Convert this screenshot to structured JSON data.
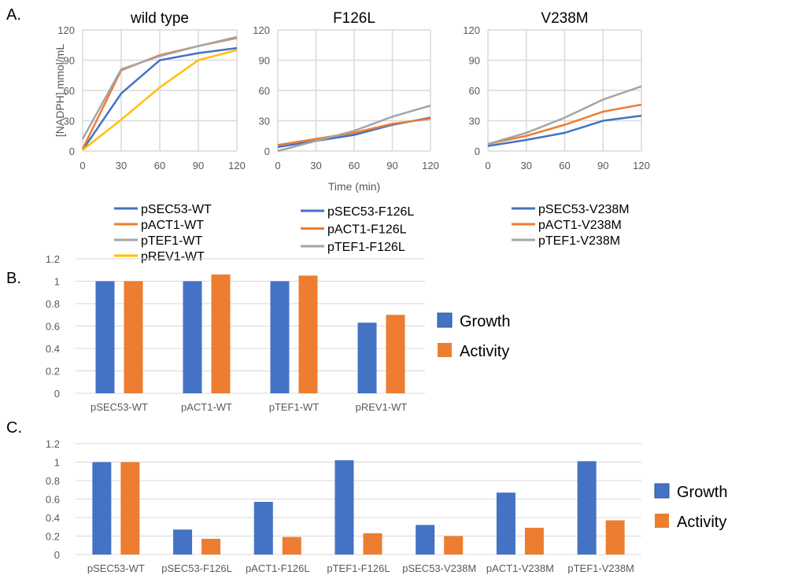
{
  "panel_labels": [
    "A.",
    "B.",
    "C."
  ],
  "colors": {
    "pSEC53": "#4472C4",
    "pACT1": "#ED7D31",
    "pTEF1": "#A5A5A5",
    "pREV1": "#FFC000",
    "growth": "#4472C4",
    "activity": "#ED7D31",
    "grid": "#D9D9D9",
    "tick": "#595959"
  },
  "chart_data": [
    {
      "type": "line",
      "title": "wild type",
      "ylabel": "[NADPH] mmol/mL",
      "xlabel": "",
      "ylim": [
        0,
        120
      ],
      "yticks": [
        0,
        30,
        60,
        90,
        120
      ],
      "x": [
        0,
        30,
        60,
        90,
        120
      ],
      "grid": true,
      "legend": "bottom",
      "series": [
        {
          "name": "pSEC53-WT",
          "values": [
            1,
            57,
            90,
            97,
            102
          ]
        },
        {
          "name": "pACT1-WT",
          "values": [
            2,
            80,
            95,
            104,
            112
          ]
        },
        {
          "name": "pTEF1-WT",
          "values": [
            12,
            81,
            94,
            104,
            113
          ]
        },
        {
          "name": "pREV1-WT",
          "values": [
            1,
            31,
            63,
            90,
            100
          ]
        }
      ]
    },
    {
      "type": "line",
      "title": "F126L",
      "ylabel": "",
      "xlabel": "Time (min)",
      "ylim": [
        0,
        120
      ],
      "yticks": [
        0,
        30,
        60,
        90,
        120
      ],
      "x": [
        0,
        30,
        60,
        90,
        120
      ],
      "grid": true,
      "legend": "bottom",
      "series": [
        {
          "name": "pSEC53-F126L",
          "values": [
            4,
            10,
            16,
            26,
            33
          ]
        },
        {
          "name": "pACT1-F126L",
          "values": [
            6,
            12,
            18,
            27,
            32
          ]
        },
        {
          "name": "pTEF1-F126L",
          "values": [
            0,
            10,
            20,
            34,
            45
          ]
        }
      ]
    },
    {
      "type": "line",
      "title": "V238M",
      "ylabel": "",
      "xlabel": "",
      "ylim": [
        0,
        120
      ],
      "yticks": [
        0,
        30,
        60,
        90,
        120
      ],
      "x": [
        0,
        30,
        60,
        90,
        120
      ],
      "grid": true,
      "legend": "bottom",
      "series": [
        {
          "name": "pSEC53-V238M",
          "values": [
            5,
            11,
            18,
            30,
            35
          ]
        },
        {
          "name": "pACT1-V238M",
          "values": [
            7,
            15,
            26,
            39,
            46
          ]
        },
        {
          "name": "pTEF1-V238M",
          "values": [
            7,
            18,
            33,
            51,
            64
          ]
        }
      ]
    },
    {
      "type": "bar",
      "ylim": [
        0,
        1.2
      ],
      "yticks": [
        "0",
        "0.2",
        "0.4",
        "0.6",
        "0.8",
        "1",
        "1.2"
      ],
      "grid": true,
      "legend": "right",
      "categories": [
        "pSEC53-WT",
        "pACT1-WT",
        "pTEF1-WT",
        "pREV1-WT"
      ],
      "series": [
        {
          "name": "Growth",
          "values": [
            1,
            1,
            1,
            0.63
          ]
        },
        {
          "name": "Activity",
          "values": [
            1,
            1.06,
            1.05,
            0.7
          ]
        }
      ]
    },
    {
      "type": "bar",
      "ylim": [
        0,
        1.2
      ],
      "yticks": [
        "0",
        "0.2",
        "0.4",
        "0.6",
        "0.8",
        "1",
        "1.2"
      ],
      "grid": true,
      "legend": "right",
      "categories": [
        "pSEC53-WT",
        "pSEC53-F126L",
        "pACT1-F126L",
        "pTEF1-F126L",
        "pSEC53-V238M",
        "pACT1-V238M",
        "pTEF1-V238M"
      ],
      "series": [
        {
          "name": "Growth",
          "values": [
            1,
            0.27,
            0.57,
            1.02,
            0.32,
            0.67,
            1.01
          ]
        },
        {
          "name": "Activity",
          "values": [
            1,
            0.17,
            0.19,
            0.23,
            0.2,
            0.29,
            0.37
          ]
        }
      ]
    }
  ]
}
